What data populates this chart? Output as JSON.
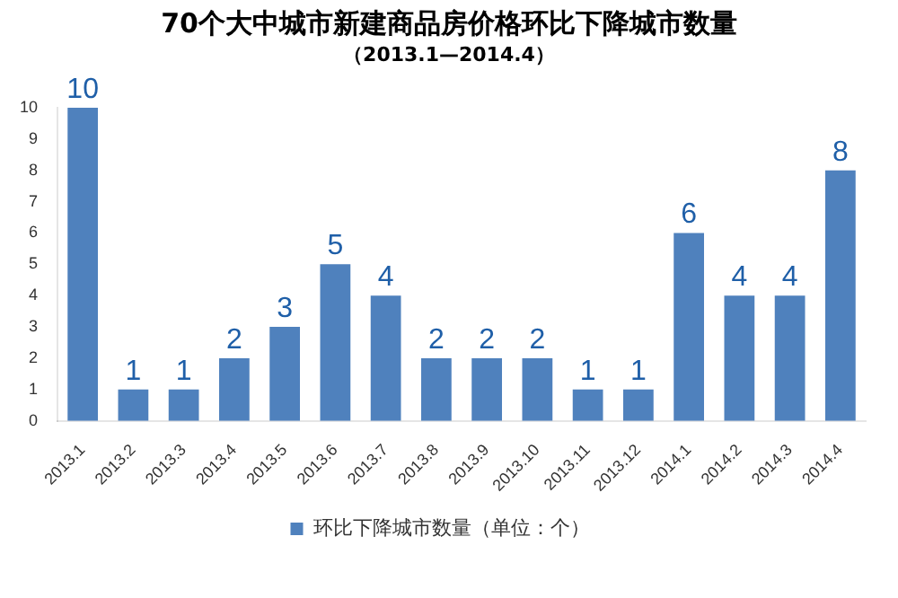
{
  "chart_data": {
    "type": "bar",
    "title": "70个大中城市新建商品房价格环比下降城市数量",
    "subtitle": "（2013.1—2014.4）",
    "categories": [
      "2013.1",
      "2013.2",
      "2013.3",
      "2013.4",
      "2013.5",
      "2013.6",
      "2013.7",
      "2013.8",
      "2013.9",
      "2013.10",
      "2013.11",
      "2013.12",
      "2014.1",
      "2014.2",
      "2014.3",
      "2014.4"
    ],
    "series": [
      {
        "name": "环比下降城市数量（单位：个）",
        "color": "#4f81bd",
        "values": [
          10,
          1,
          1,
          2,
          3,
          5,
          4,
          2,
          2,
          2,
          1,
          1,
          6,
          4,
          4,
          8
        ]
      }
    ],
    "ylim": [
      0,
      10
    ],
    "yticks": [
      0,
      1,
      2,
      3,
      4,
      5,
      6,
      7,
      8,
      9,
      10
    ],
    "grid": false,
    "legend": "bottom",
    "data_labels": true
  }
}
